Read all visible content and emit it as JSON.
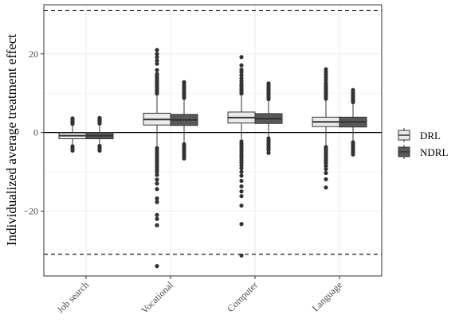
{
  "chart_data": {
    "type": "boxplot",
    "title": "",
    "xlabel": "",
    "ylabel": "Individualized average treatment effect",
    "ylim": [
      -36.5,
      32.5
    ],
    "yticks": [
      -20,
      0,
      20
    ],
    "grid": true,
    "legend": {
      "position": "right"
    },
    "reference_lines": {
      "solid": [
        0
      ],
      "dashed": [
        31,
        -31
      ]
    },
    "categories": [
      "Job search",
      "Vocational",
      "Computer",
      "Language"
    ],
    "series": [
      {
        "name": "DRL",
        "color": "#ebebeb",
        "boxes": [
          {
            "min": -3.0,
            "q1": -1.6,
            "median": -0.8,
            "q3": -0.1,
            "max": 1.9,
            "outliers_high": [
              2.2,
              2.6,
              3.0,
              3.3,
              3.6
            ],
            "outliers_low": [
              -3.5,
              -4.0,
              -4.6
            ]
          },
          {
            "min": -3.6,
            "q1": 1.9,
            "median": 3.3,
            "q3": 4.9,
            "max": 9.5,
            "outliers_high": [
              9.9,
              10.4,
              10.9,
              11.4,
              11.9,
              12.4,
              12.9,
              13.4,
              13.9,
              14.4,
              14.9,
              15.9,
              17.5,
              18.3,
              19.2,
              20.0,
              21.0
            ],
            "outliers_low": [
              -4.0,
              -4.6,
              -5.2,
              -5.8,
              -6.4,
              -7.0,
              -7.6,
              -8.2,
              -8.8,
              -9.4,
              -10.0,
              -10.8,
              -12.0,
              -13.0,
              -14.4,
              -16.8,
              -17.7,
              -21.0,
              -22.0,
              -23.6,
              -34.0
            ]
          },
          {
            "min": -1.8,
            "q1": 2.4,
            "median": 3.8,
            "q3": 5.2,
            "max": 9.4,
            "outliers_high": [
              9.9,
              10.4,
              10.9,
              11.4,
              11.9,
              12.4,
              13.1,
              13.8,
              14.6,
              15.4,
              16.0,
              17.1,
              19.2
            ],
            "outliers_low": [
              -2.3,
              -2.9,
              -3.5,
              -4.1,
              -4.7,
              -5.3,
              -5.9,
              -6.5,
              -7.1,
              -7.7,
              -8.4,
              -9.1,
              -10.0,
              -11.0,
              -12.3,
              -13.7,
              -15.0,
              -16.2,
              -18.6,
              -23.3,
              -31.3
            ]
          },
          {
            "min": -3.4,
            "q1": 1.5,
            "median": 2.7,
            "q3": 3.9,
            "max": 8.2,
            "outliers_high": [
              8.6,
              9.1,
              9.6,
              10.1,
              10.6,
              11.1,
              11.6,
              12.1,
              12.6,
              13.3,
              14.0,
              14.7,
              15.4,
              16.1
            ],
            "outliers_low": [
              -3.7,
              -4.2,
              -4.7,
              -5.2,
              -5.7,
              -6.2,
              -6.7,
              -7.2,
              -7.8,
              -8.5,
              -9.3,
              -10.3,
              -11.9,
              -14.0
            ]
          }
        ]
      },
      {
        "name": "NDRL",
        "color": "#595959",
        "boxes": [
          {
            "min": -3.0,
            "q1": -1.6,
            "median": -0.8,
            "q3": 0.0,
            "max": 2.0,
            "outliers_high": [
              2.3,
              2.7,
              3.1,
              3.4,
              3.7
            ],
            "outliers_low": [
              -3.4,
              -3.8,
              -4.2,
              -4.6
            ]
          },
          {
            "min": -2.6,
            "q1": 1.8,
            "median": 3.2,
            "q3": 4.6,
            "max": 8.4,
            "outliers_high": [
              8.8,
              9.3,
              9.8,
              10.3,
              10.8,
              11.3,
              11.8,
              12.3,
              12.8
            ],
            "outliers_low": [
              -3.0,
              -3.5,
              -4.0,
              -4.5,
              -5.0,
              -5.5,
              -6.0,
              -6.6
            ]
          },
          {
            "min": -1.0,
            "q1": 2.3,
            "median": 3.5,
            "q3": 4.8,
            "max": 8.1,
            "outliers_high": [
              8.5,
              9.0,
              9.5,
              10.0,
              10.5,
              11.0,
              11.5,
              12.0,
              12.5
            ],
            "outliers_low": [
              -1.5,
              -2.0,
              -2.5,
              -3.0,
              -3.5,
              -4.0,
              -4.5,
              -5.2
            ]
          },
          {
            "min": -2.1,
            "q1": 1.4,
            "median": 2.7,
            "q3": 3.9,
            "max": 7.3,
            "outliers_high": [
              7.7,
              8.2,
              8.7,
              9.2,
              9.7,
              10.2,
              10.8
            ],
            "outliers_low": [
              -2.5,
              -3.0,
              -3.5,
              -4.0,
              -4.5,
              -5.0,
              -5.6
            ]
          }
        ]
      }
    ]
  }
}
